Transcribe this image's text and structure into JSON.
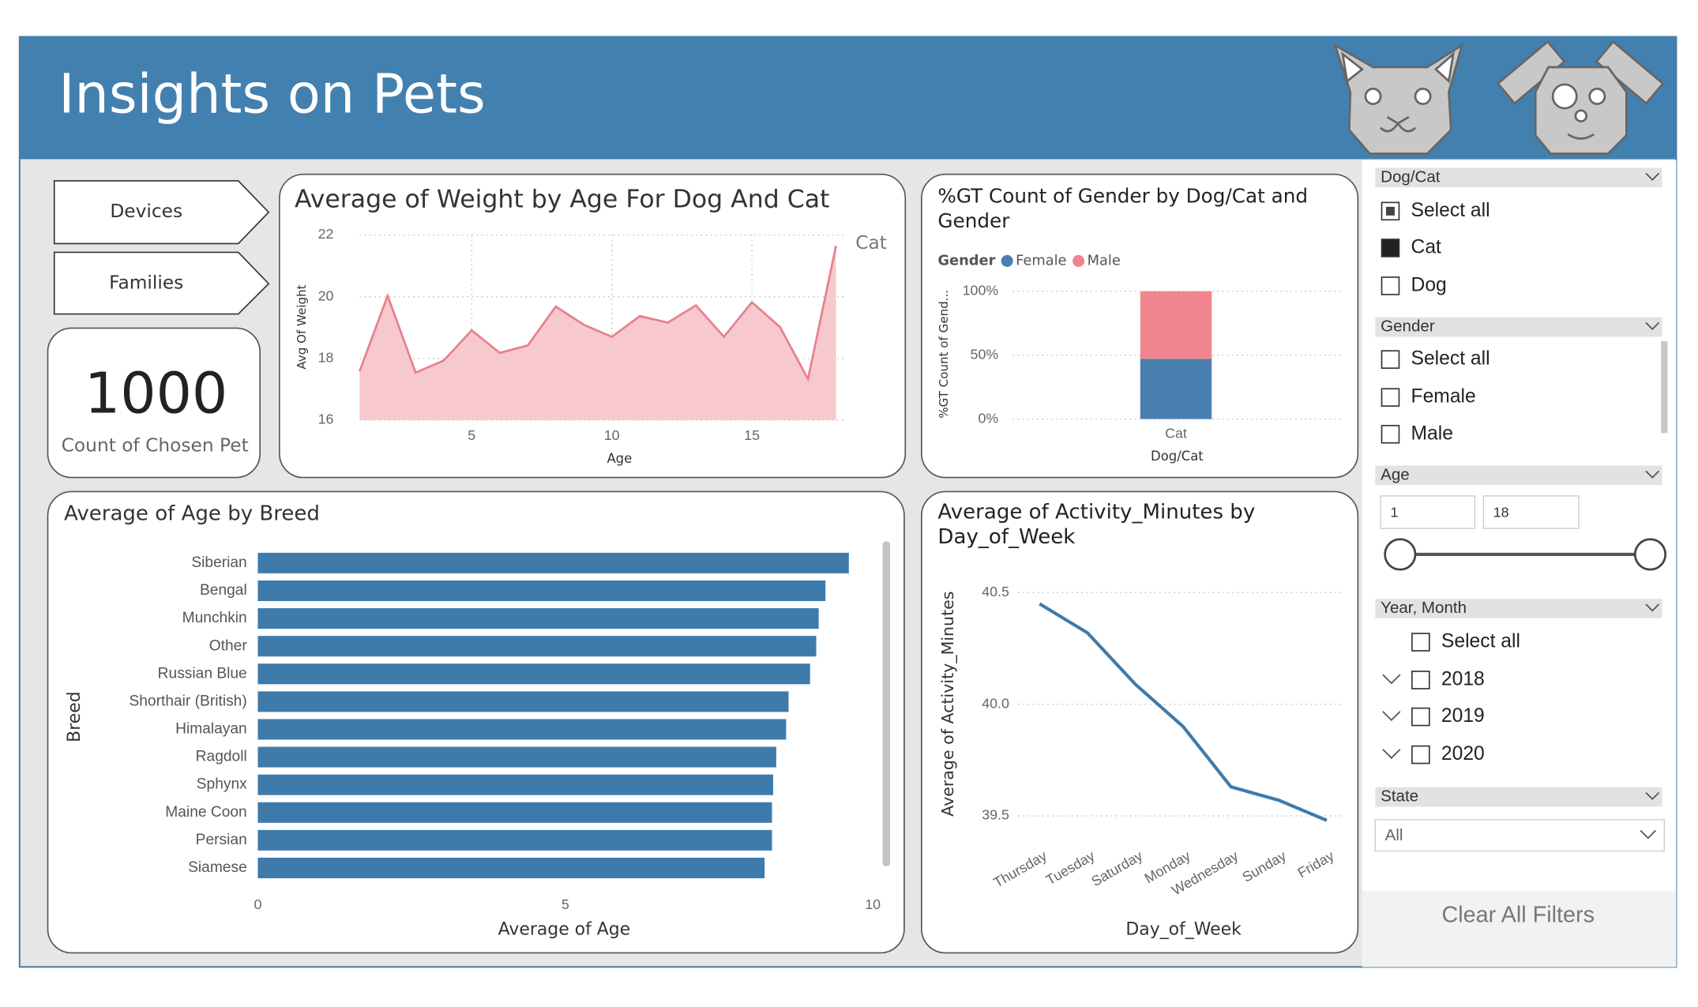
{
  "header": {
    "title": "Insights on Pets"
  },
  "buttons": [
    "Devices",
    "Families"
  ],
  "card": {
    "value": 1000,
    "label": "Count of Chosen Pet"
  },
  "chart_data": [
    {
      "type": "area",
      "title": "Average of Weight by Age For Dog And Cat",
      "x": [
        1,
        2,
        3,
        4,
        5,
        6,
        7,
        8,
        9,
        10,
        11,
        12,
        13,
        14,
        15,
        16,
        17,
        18
      ],
      "series": [
        {
          "name": "Cat",
          "color": "#e8808c",
          "fill": "#f7c9ce",
          "values": [
            17.58,
            20.03,
            17.54,
            17.93,
            18.91,
            18.18,
            18.42,
            19.68,
            19.09,
            18.7,
            19.37,
            19.16,
            19.72,
            18.7,
            19.82,
            19.02,
            17.33,
            21.65
          ]
        }
      ],
      "x_label": "Age",
      "y_label": "Avg Of Weight",
      "xlim": [
        1,
        18
      ],
      "xticks": [
        5,
        10,
        15
      ],
      "ylim": [
        16,
        22
      ],
      "yticks": [
        16,
        18,
        20,
        22
      ],
      "grid": true
    },
    {
      "type": "stacked_bar",
      "title": "%GT Count of Gender by Dog/Cat and Gender",
      "legend_title": "Gender",
      "categories": [
        "Cat"
      ],
      "series": [
        {
          "name": "Female",
          "color": "#4a80b0",
          "values": [
            47
          ]
        },
        {
          "name": "Male",
          "color": "#f08590",
          "values": [
            53
          ]
        }
      ],
      "x_label": "Dog/Cat",
      "y_label": "%GT Count of Gend...",
      "ylim": [
        0,
        100
      ],
      "yticks": [
        {
          "value": 0,
          "label": "0%"
        },
        {
          "value": 50,
          "label": "50%"
        },
        {
          "value": 100,
          "label": "100%"
        }
      ],
      "grid": true
    },
    {
      "type": "hbar",
      "title": "Average of Age by Breed",
      "categories": [
        "Siberian",
        "Bengal",
        "Munchkin",
        "Other",
        "Russian Blue",
        "Shorthair (British)",
        "Himalayan",
        "Ragdoll",
        "Sphynx",
        "Maine Coon",
        "Persian",
        "Siamese"
      ],
      "values": [
        9.61,
        9.23,
        9.12,
        9.08,
        8.98,
        8.63,
        8.59,
        8.43,
        8.38,
        8.36,
        8.36,
        8.24
      ],
      "color": "#3e7bab",
      "x_label": "Average of Age",
      "y_label": "Breed",
      "xlim": [
        0,
        10
      ],
      "xticks": [
        0,
        5,
        10
      ]
    },
    {
      "type": "line",
      "title": "Average of Activity_Minutes by Day_of_Week",
      "categories": [
        "Thursday",
        "Tuesday",
        "Saturday",
        "Monday",
        "Wednesday",
        "Sunday",
        "Friday"
      ],
      "values": [
        40.45,
        40.32,
        40.09,
        39.9,
        39.63,
        39.57,
        39.48
      ],
      "color": "#3e7bab",
      "x_label": "Day_of_Week",
      "y_label": "Average of Activity_Minutes",
      "ylim": [
        39.42,
        40.55
      ],
      "yticks": [
        39.5,
        {
          "value": 40,
          "label": "40.0"
        },
        40.5
      ],
      "grid": true
    }
  ],
  "filters": {
    "dog_cat": {
      "title": "Dog/Cat",
      "options": [
        "Select all",
        "Cat",
        "Dog"
      ]
    },
    "gender": {
      "title": "Gender",
      "options": [
        "Select all",
        "Female",
        "Male"
      ]
    },
    "age": {
      "title": "Age",
      "min": 1,
      "max": 18
    },
    "year_month": {
      "title": "Year, Month",
      "options": [
        "Select all",
        "2018",
        "2019",
        "2020"
      ]
    },
    "state": {
      "title": "State",
      "value": "All"
    },
    "clear": "Clear All Filters"
  }
}
